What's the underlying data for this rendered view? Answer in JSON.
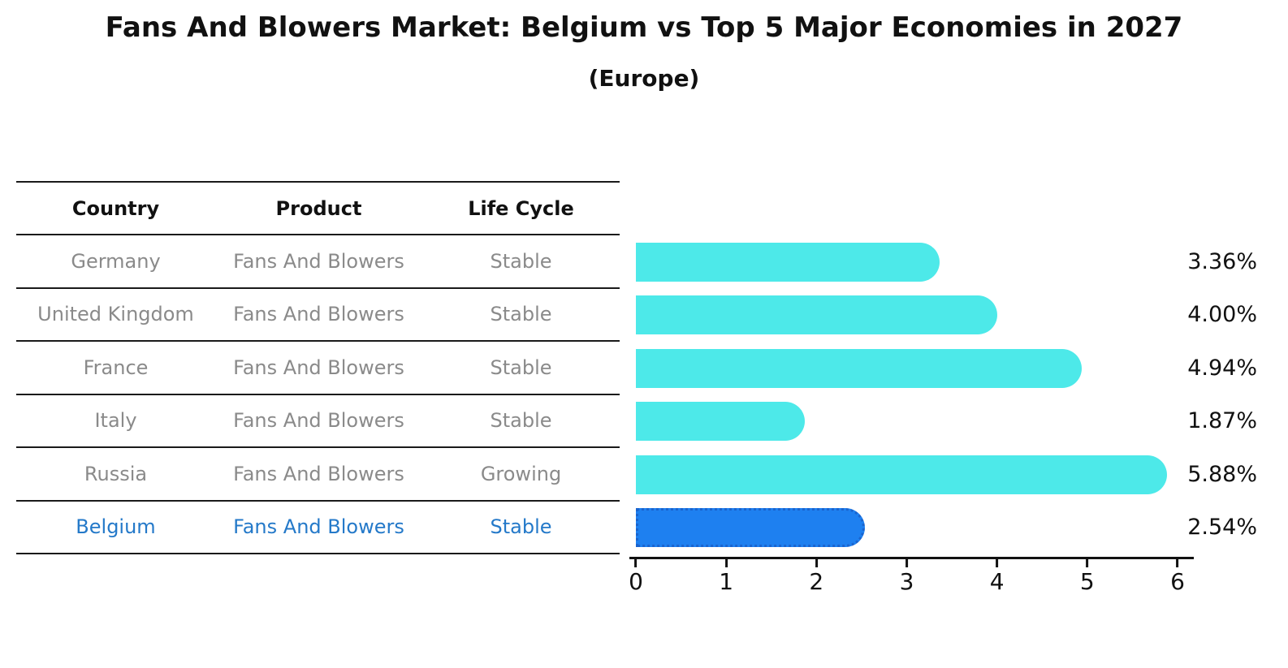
{
  "title": "Fans And Blowers Market: Belgium vs Top 5 Major Economies in 2027",
  "subtitle": "(Europe)",
  "table": {
    "headers": {
      "country": "Country",
      "product": "Product",
      "life_cycle": "Life Cycle"
    },
    "rows": [
      {
        "country": "Germany",
        "product": "Fans And Blowers",
        "life_cycle": "Stable",
        "highlight": false
      },
      {
        "country": "United Kingdom",
        "product": "Fans And Blowers",
        "life_cycle": "Stable",
        "highlight": false
      },
      {
        "country": "France",
        "product": "Fans And Blowers",
        "life_cycle": "Stable",
        "highlight": false
      },
      {
        "country": "Italy",
        "product": "Fans And Blowers",
        "life_cycle": "Stable",
        "highlight": false
      },
      {
        "country": "Russia",
        "product": "Fans And Blowers",
        "life_cycle": "Growing",
        "highlight": false
      },
      {
        "country": "Belgium",
        "product": "Fans And Blowers",
        "life_cycle": "Stable",
        "highlight": true
      }
    ]
  },
  "chart_data": {
    "type": "bar",
    "orientation": "horizontal",
    "categories": [
      "Germany",
      "United Kingdom",
      "France",
      "Italy",
      "Russia",
      "Belgium"
    ],
    "values": [
      3.36,
      4.0,
      4.94,
      1.87,
      5.88,
      2.54
    ],
    "value_labels": [
      "3.36%",
      "4.00%",
      "4.94%",
      "1.87%",
      "5.88%",
      "2.54%"
    ],
    "title": "Fans And Blowers Market: Belgium vs Top 5 Major Economies in 2027 (Europe)",
    "xlabel": "",
    "ylabel": "",
    "xlim": [
      0,
      6
    ],
    "x_ticks": [
      "0",
      "1",
      "2",
      "3",
      "4",
      "5",
      "6"
    ],
    "grid": false,
    "legend_position": "none",
    "bar_color": "#4de9e9",
    "highlight_bar_color": "#1e80f0",
    "highlight_border_color": "#1a64ce",
    "highlight_index": 5
  },
  "colors": {
    "background": "#ffffff",
    "heading_text": "#111111",
    "table_text": "#8a8a8a",
    "highlight_text": "#2479c9",
    "axis": "#111111"
  }
}
